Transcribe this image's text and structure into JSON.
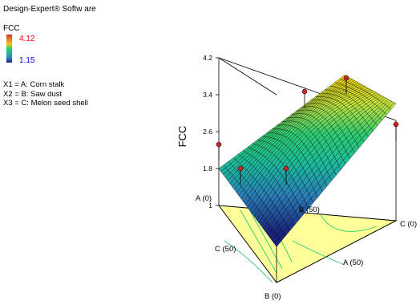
{
  "header": {
    "software": "Design-Expert® Softw are"
  },
  "legend": {
    "variable": "FCC",
    "high": "4.12",
    "low": "1.15"
  },
  "factors": [
    "X1 = A: Corn stalk",
    "X2 = B: Saw dust",
    "X3 = C: Melon seed shell"
  ],
  "chart_data": {
    "type": "surface",
    "zlabel": "FCC",
    "zticks": [
      "1",
      "1.8",
      "2.6",
      "3.4",
      "4.2"
    ],
    "zlim": [
      1,
      4.2
    ],
    "color_range": [
      1.15,
      4.12
    ],
    "vertex_labels": {
      "a_low": "A (0)",
      "b_low": "B (0)",
      "b_mid": "B (50)",
      "c_low": "C (0)",
      "c_mid": "C (50)",
      "a_mid": "A (50)"
    },
    "surface": {
      "corner_left": 1.8,
      "corner_front": 1.15,
      "corner_right": 3.0,
      "peak": 4.0
    },
    "design_points": [
      {
        "label": "p1",
        "fcc": 4.12
      },
      {
        "label": "p2",
        "fcc": 3.9
      },
      {
        "label": "p3",
        "fcc": 3.0
      },
      {
        "label": "p4",
        "fcc": 2.3
      },
      {
        "label": "p5",
        "fcc": 1.8
      },
      {
        "label": "p6",
        "fcc": 1.6
      }
    ]
  }
}
